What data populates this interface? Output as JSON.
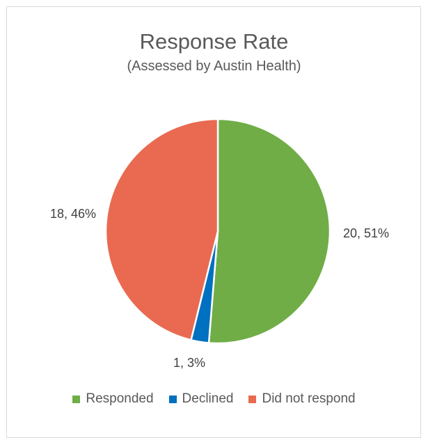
{
  "chart_data": {
    "type": "pie",
    "title": "Response Rate",
    "subtitle": "(Assessed by Austin Health)",
    "legend_position": "bottom",
    "slices": [
      {
        "name": "Responded",
        "value": 20,
        "percent": "51%",
        "label": "20, 51%",
        "color": "#70ad47"
      },
      {
        "name": "Declined",
        "value": 1,
        "percent": "3%",
        "label": "1, 3%",
        "color": "#0070c0"
      },
      {
        "name": "Did not respond",
        "value": 18,
        "percent": "46%",
        "label": "18, 46%",
        "color": "#e96a50"
      }
    ]
  }
}
